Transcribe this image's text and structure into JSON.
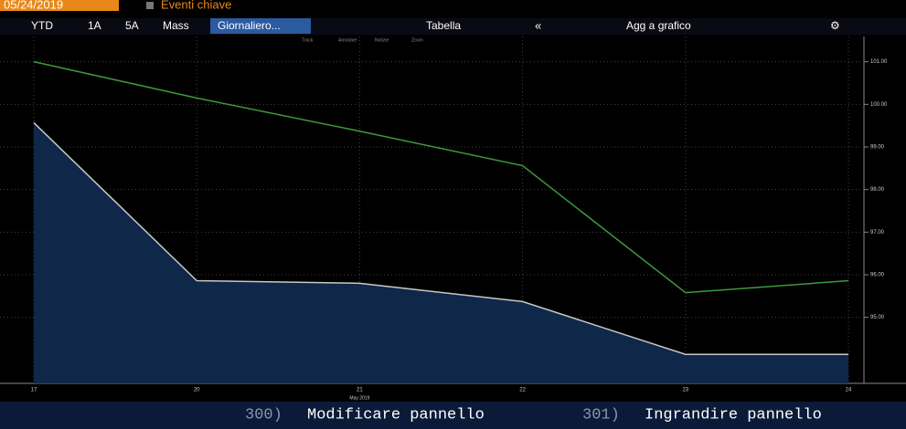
{
  "header": {
    "date": "05/24/2019",
    "events": "Eventi chiave"
  },
  "toolbar": {
    "items": [
      "YTD",
      "1A",
      "5A",
      "Mass"
    ],
    "interval": "Giornaliero...",
    "table": "Tabella",
    "collapse": "«",
    "add": "Agg a grafico"
  },
  "legend_tools": [
    "Track",
    "Annotare",
    "Notizie",
    "Zoom"
  ],
  "chart_data": {
    "type": "line",
    "categories": [
      "17",
      "20",
      "21",
      "22",
      "23",
      "24"
    ],
    "x_sublabel": "May 2019",
    "series": [
      {
        "color": "#3c9a3c",
        "values": [
          101.0,
          100.15,
          99.37,
          98.56,
          95.58,
          95.86
        ]
      },
      {
        "color": "#c8c8c8",
        "fill": "#0f2849",
        "area": true,
        "values": [
          99.57,
          95.86,
          95.8,
          95.37,
          94.13,
          94.13
        ]
      }
    ],
    "ylim": [
      93.45,
      101.7
    ],
    "yticks": [
      {
        "value": 95,
        "label": "95.00"
      },
      {
        "value": 96,
        "label": "96.00"
      },
      {
        "value": 97,
        "label": "97.00"
      },
      {
        "value": 98,
        "label": "98.00"
      },
      {
        "value": 99,
        "label": "99.00"
      },
      {
        "value": 100,
        "label": "100.00"
      },
      {
        "value": 101,
        "label": "101.00"
      }
    ],
    "grid": true
  },
  "footer": {
    "items": [
      {
        "num": "300)",
        "label": "Modificare pannello"
      },
      {
        "num": "301)",
        "label": "Ingrandire pannello"
      }
    ]
  }
}
